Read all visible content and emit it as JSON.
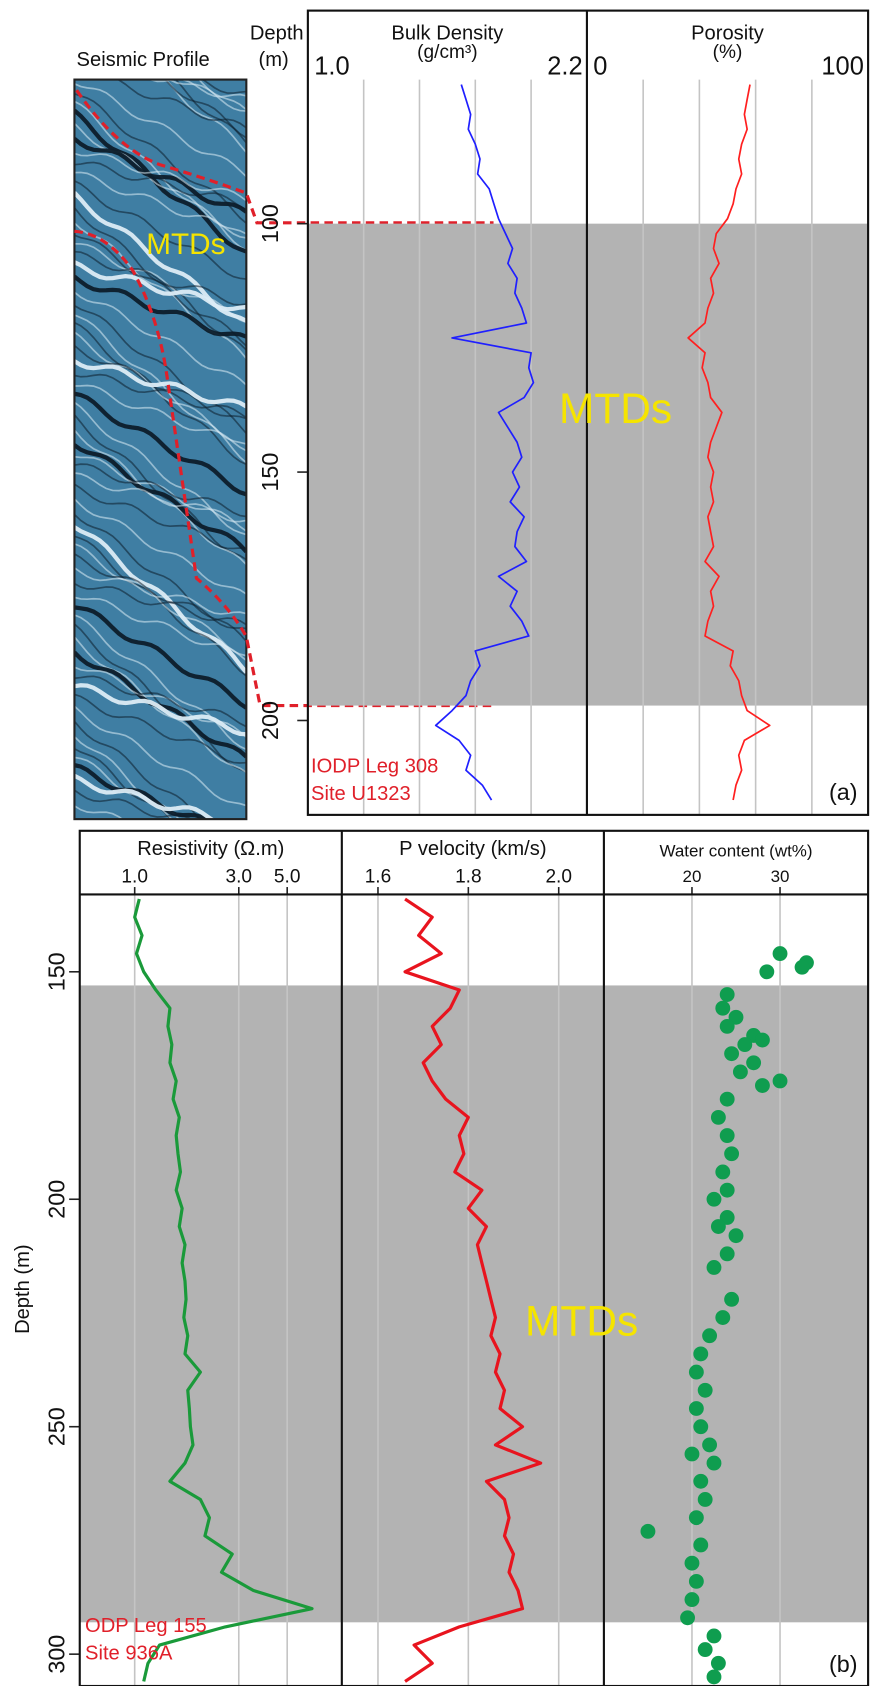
{
  "chart_data": [
    {
      "type": "line",
      "title": "Bulk Density",
      "unit": "(g/cm³)",
      "color": "#1f1fff",
      "xlim": [
        1.0,
        2.2
      ],
      "xticks": [
        {
          "value": 1.0,
          "label": "1.0"
        },
        {
          "value": 2.2,
          "label": "2.2"
        }
      ],
      "grid_x": [
        1.24,
        1.48,
        1.72,
        1.96
      ],
      "ylim": [
        71,
        219
      ],
      "yticks": [
        100,
        150,
        200
      ],
      "ylabel": "Depth",
      "ylabel_unit": "(m)",
      "seismic_title": "Seismic Profile",
      "seismic_label": "MTDs",
      "interval": {
        "label": "MTDs",
        "from": 100,
        "to": 197
      },
      "annotations": [
        "IODP Leg 308",
        "Site U1323"
      ],
      "panel_label": "(a)",
      "depth": [
        72,
        75,
        78,
        81,
        84,
        87,
        90,
        93,
        96,
        99,
        102,
        105,
        108,
        111,
        114,
        117,
        120,
        123,
        126,
        129,
        132,
        135,
        138,
        141,
        144,
        147,
        150,
        153,
        156,
        159,
        162,
        165,
        168,
        171,
        174,
        177,
        180,
        183,
        186,
        189,
        192,
        195,
        198,
        201,
        204,
        207,
        210,
        213,
        216
      ],
      "values": [
        1.66,
        1.68,
        1.7,
        1.69,
        1.72,
        1.74,
        1.73,
        1.78,
        1.8,
        1.82,
        1.85,
        1.88,
        1.86,
        1.9,
        1.89,
        1.92,
        1.94,
        1.62,
        1.96,
        1.95,
        1.97,
        1.93,
        1.82,
        1.86,
        1.9,
        1.92,
        1.88,
        1.91,
        1.87,
        1.93,
        1.9,
        1.89,
        1.94,
        1.82,
        1.9,
        1.87,
        1.92,
        1.95,
        1.72,
        1.74,
        1.7,
        1.68,
        1.62,
        1.55,
        1.65,
        1.7,
        1.68,
        1.75,
        1.79
      ]
    },
    {
      "type": "line",
      "title": "Porosity",
      "unit": "(%)",
      "color": "#ff1f1f",
      "xlim": [
        0,
        100
      ],
      "xticks": [
        0,
        100
      ],
      "grid_x": [
        20,
        40,
        60,
        80
      ],
      "ylim": [
        71,
        219
      ],
      "depth": [
        72,
        75,
        78,
        81,
        84,
        87,
        90,
        93,
        96,
        99,
        102,
        105,
        108,
        111,
        114,
        117,
        120,
        123,
        126,
        129,
        132,
        135,
        138,
        141,
        144,
        147,
        150,
        153,
        156,
        159,
        162,
        165,
        168,
        171,
        174,
        177,
        180,
        183,
        186,
        189,
        192,
        195,
        198,
        201,
        204,
        207,
        210,
        213,
        216
      ],
      "values": [
        58,
        57,
        56,
        57,
        55,
        54,
        55,
        53,
        52,
        50,
        46,
        45,
        47,
        44,
        45,
        43,
        42,
        36,
        42,
        41,
        43,
        44,
        48,
        46,
        44,
        43,
        45,
        44,
        45,
        43,
        44,
        45,
        42,
        47,
        44,
        45,
        43,
        42,
        52,
        51,
        54,
        55,
        57,
        65,
        56,
        54,
        55,
        53,
        52
      ]
    },
    {
      "type": "line",
      "title": "Resistivity (Ω.m)",
      "color": "#1a9a3a",
      "log": true,
      "xlim": [
        0.56,
        8.9
      ],
      "xticks": [
        {
          "value": 1,
          "label": "1.0"
        },
        {
          "value": 3,
          "label": "3.0"
        },
        {
          "value": 5,
          "label": "5.0"
        }
      ],
      "grid": true,
      "ylim": [
        133,
        307
      ],
      "yticks": [
        150,
        200,
        250,
        300
      ],
      "ylabel": "Depth (m)",
      "interval": {
        "label": "MTDs",
        "from": 153,
        "to": 293
      },
      "annotations": [
        "ODP Leg 155",
        "Site 936A"
      ],
      "panel_label": "(b)",
      "depth": [
        134,
        138,
        142,
        146,
        150,
        154,
        158,
        162,
        166,
        170,
        174,
        178,
        182,
        186,
        190,
        194,
        198,
        202,
        206,
        210,
        214,
        218,
        222,
        226,
        230,
        234,
        238,
        242,
        246,
        250,
        254,
        258,
        262,
        266,
        270,
        274,
        278,
        282,
        286,
        290,
        294,
        298,
        302,
        306
      ],
      "values": [
        1.05,
        1.0,
        1.08,
        1.02,
        1.1,
        1.25,
        1.45,
        1.42,
        1.48,
        1.45,
        1.55,
        1.5,
        1.6,
        1.55,
        1.58,
        1.62,
        1.55,
        1.65,
        1.6,
        1.7,
        1.65,
        1.7,
        1.72,
        1.68,
        1.75,
        1.7,
        2.0,
        1.75,
        1.78,
        1.8,
        1.85,
        1.7,
        1.45,
        2.0,
        2.2,
        2.1,
        2.8,
        2.5,
        3.5,
        6.5,
        2.6,
        1.3,
        1.15,
        1.1
      ]
    },
    {
      "type": "line",
      "title": "P velocity (km/s)",
      "color": "#e8141e",
      "xlim": [
        1.52,
        2.1
      ],
      "xticks": [
        1.6,
        1.8,
        {
          "value": 2,
          "label": "2.0"
        }
      ],
      "grid": true,
      "ylim": [
        133,
        307
      ],
      "depth": [
        134,
        138,
        142,
        146,
        150,
        154,
        158,
        162,
        166,
        170,
        174,
        178,
        182,
        186,
        190,
        194,
        198,
        202,
        206,
        210,
        214,
        218,
        222,
        226,
        230,
        234,
        238,
        242,
        246,
        250,
        254,
        258,
        262,
        266,
        270,
        274,
        278,
        282,
        286,
        290,
        294,
        298,
        302,
        306
      ],
      "values": [
        1.66,
        1.72,
        1.69,
        1.74,
        1.66,
        1.78,
        1.76,
        1.72,
        1.74,
        1.7,
        1.72,
        1.75,
        1.8,
        1.78,
        1.79,
        1.77,
        1.83,
        1.8,
        1.84,
        1.82,
        1.83,
        1.84,
        1.85,
        1.86,
        1.85,
        1.87,
        1.86,
        1.88,
        1.87,
        1.92,
        1.86,
        1.96,
        1.84,
        1.88,
        1.89,
        1.88,
        1.9,
        1.89,
        1.91,
        1.92,
        1.78,
        1.68,
        1.72,
        1.66
      ]
    },
    {
      "type": "scatter",
      "title": "Water content (wt%)",
      "color": "#0f9d4f",
      "xlim": [
        10,
        40
      ],
      "xticks": [
        20,
        30
      ],
      "grid": true,
      "ylim": [
        133,
        307
      ],
      "depth": [
        146,
        148,
        149,
        150,
        155,
        158,
        160,
        162,
        164,
        165,
        166,
        168,
        170,
        172,
        174,
        175,
        178,
        182,
        186,
        190,
        194,
        198,
        200,
        204,
        206,
        208,
        212,
        215,
        222,
        226,
        230,
        234,
        238,
        242,
        246,
        250,
        254,
        256,
        258,
        262,
        266,
        270,
        273,
        276,
        280,
        284,
        288,
        292,
        296,
        299,
        302,
        305
      ],
      "values": [
        30,
        33,
        32.5,
        28.5,
        24,
        23.5,
        25,
        24,
        27,
        28,
        26,
        24.5,
        27,
        25.5,
        30,
        28,
        24,
        23,
        24,
        24.5,
        23.5,
        24,
        22.5,
        24,
        23,
        25,
        24,
        22.5,
        24.5,
        23.5,
        22,
        21,
        20.5,
        21.5,
        20.5,
        21,
        22,
        20,
        22.5,
        21,
        21.5,
        20.5,
        15,
        21,
        20,
        20.5,
        20,
        19.5,
        22.5,
        21.5,
        23,
        22.5
      ]
    }
  ]
}
